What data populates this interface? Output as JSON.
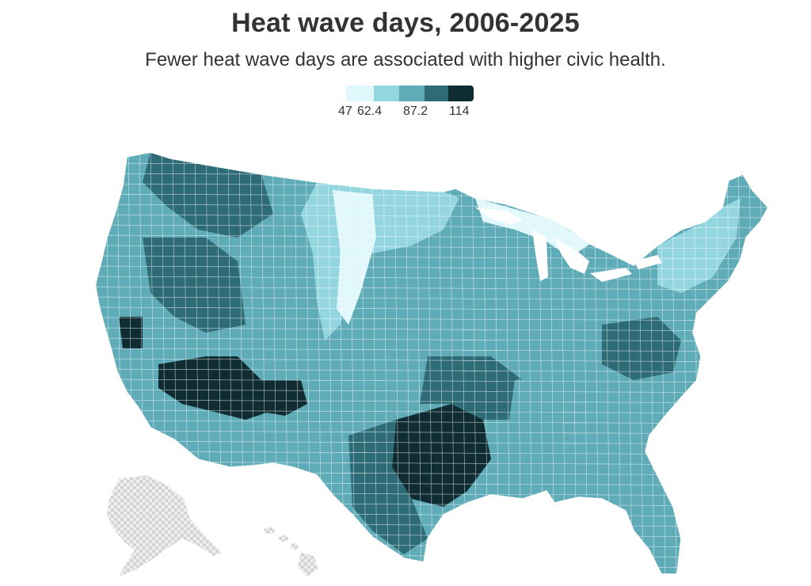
{
  "title": "Heat wave days, 2006-2025",
  "subtitle": "Fewer heat wave days are associated with higher civic health.",
  "legend": {
    "labels": [
      "47",
      "62.4",
      "87.2",
      "114"
    ],
    "colors": [
      "#e0f8fb",
      "#93d6e0",
      "#5fabb8",
      "#2d6b76",
      "#0f2c33"
    ]
  },
  "map": {
    "metric": "Heat wave days",
    "period": "2006-2025",
    "geography": "US counties",
    "scale": {
      "min": 47,
      "breaks": [
        62.4,
        87.2
      ],
      "max": 114
    },
    "no_data_color": "#d6d6d6",
    "border_color": "#ffffff",
    "regions": [
      {
        "name": "Desert Southwest (Arizona, Nevada)",
        "level": "highest"
      },
      {
        "name": "Central and North Texas",
        "level": "highest"
      },
      {
        "name": "Central Valley, California",
        "level": "highest"
      },
      {
        "name": "Northern Great Plains (Montana, Dakotas, Nebraska)",
        "level": "lowest"
      },
      {
        "name": "Upper Midwest (Minnesota, Wisconsin, Michigan)",
        "level": "lowest"
      },
      {
        "name": "Alaska",
        "level": "no data"
      },
      {
        "name": "Hawaii",
        "level": "no data"
      }
    ]
  }
}
